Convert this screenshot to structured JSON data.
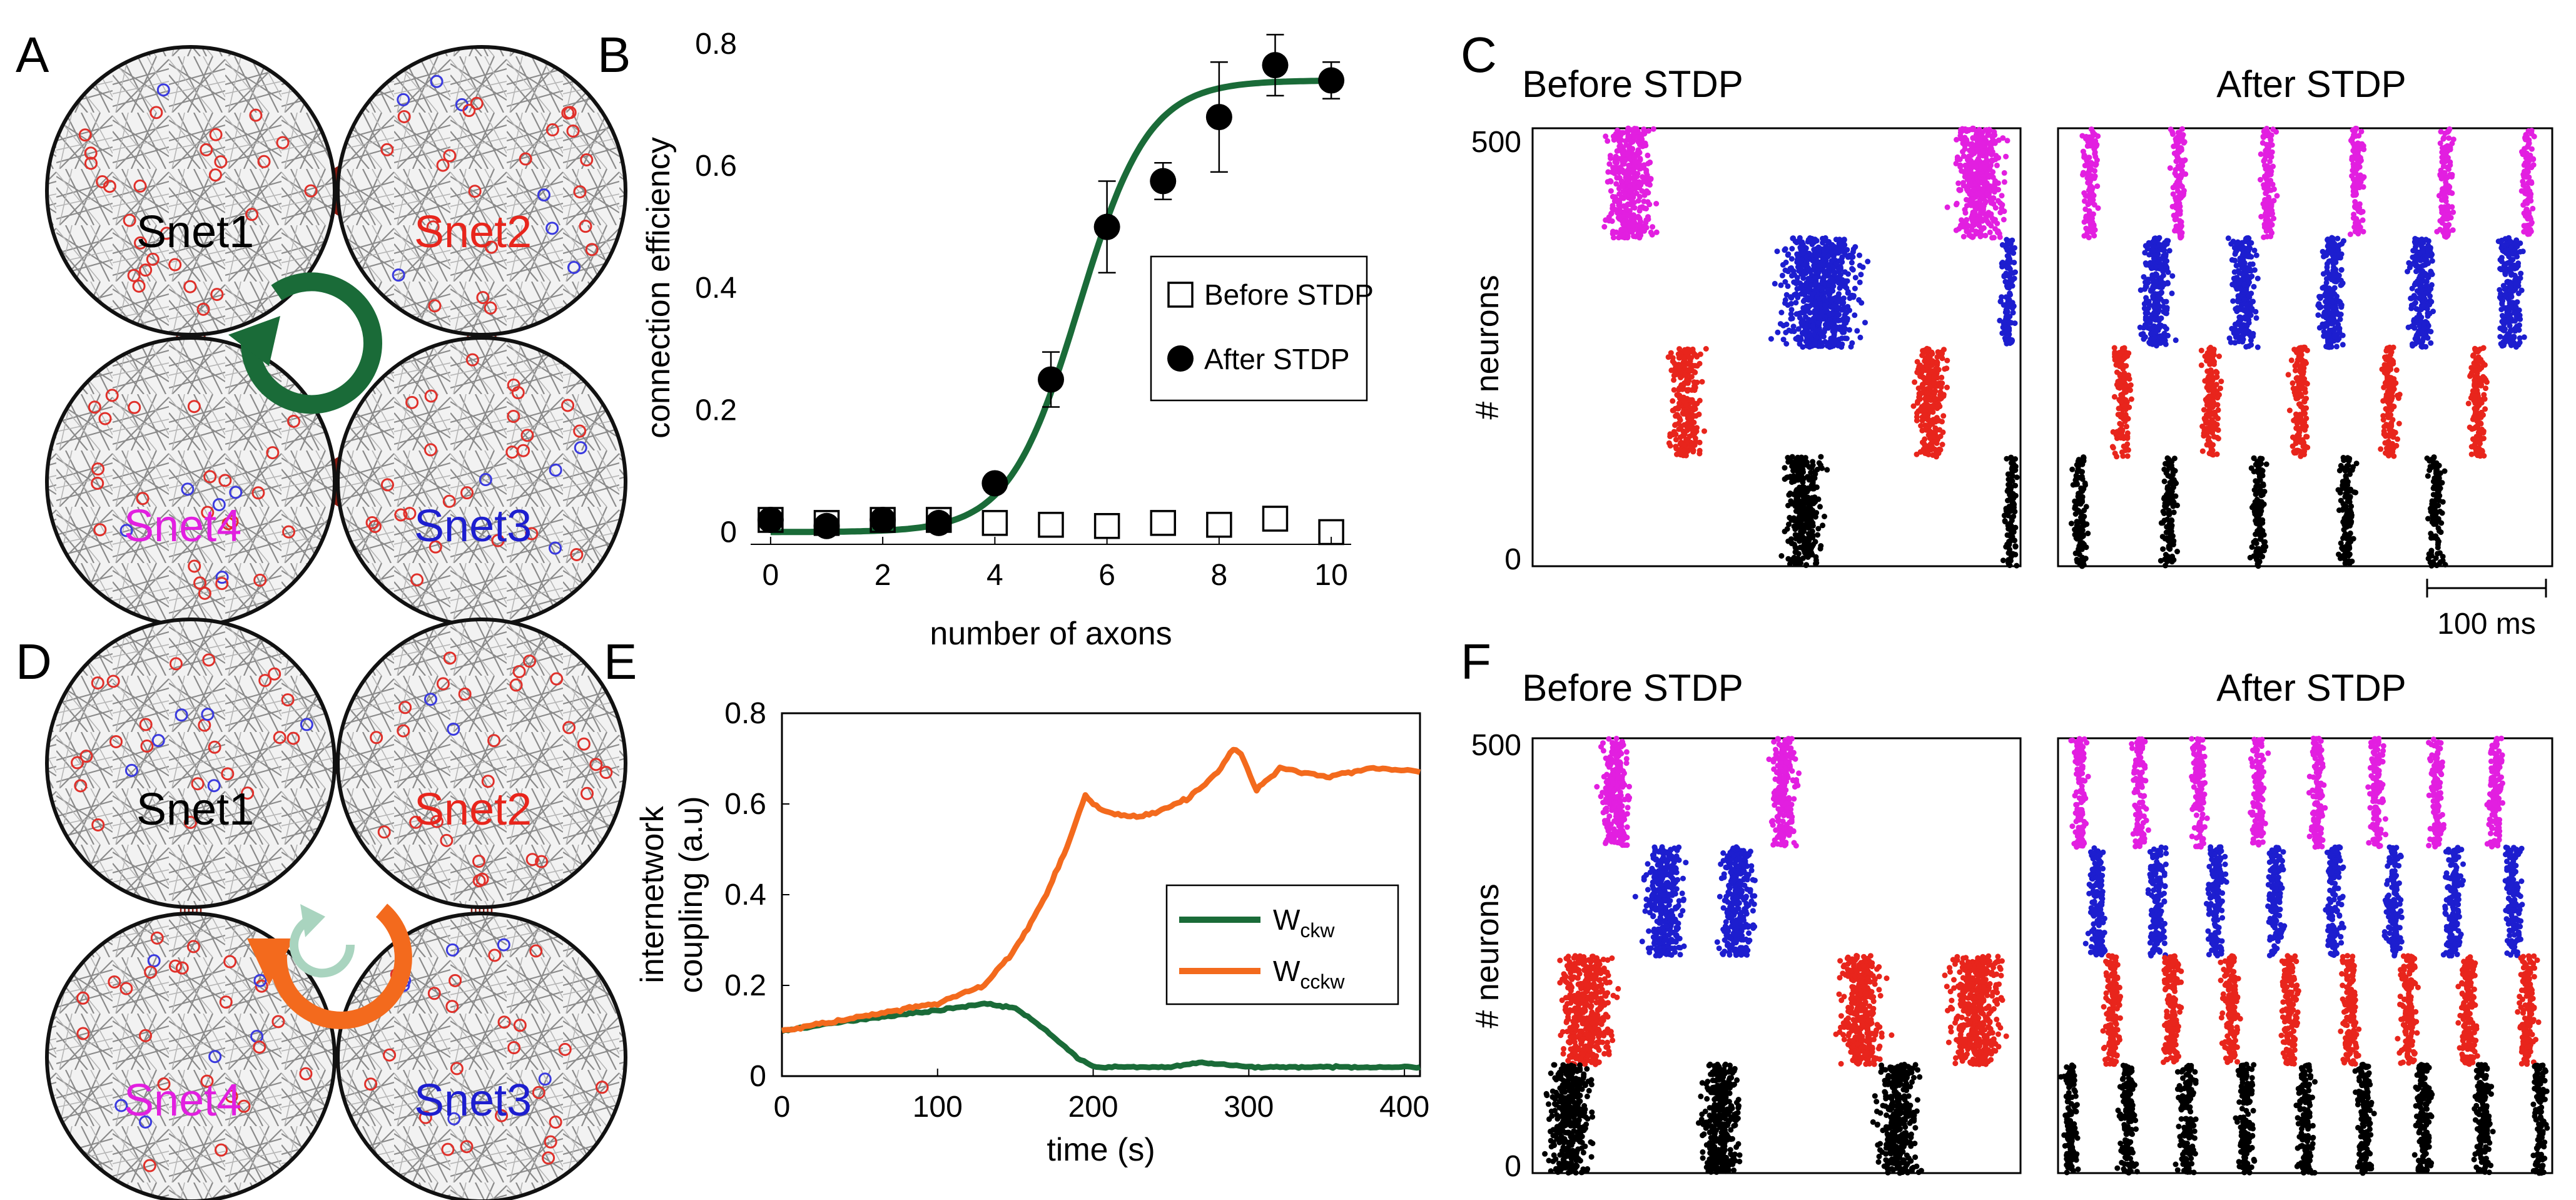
{
  "panel_labels": {
    "A": "A",
    "B": "B",
    "C": "C",
    "D": "D",
    "E": "E",
    "F": "F"
  },
  "colors": {
    "snet1": "#000000",
    "snet2": "#e8251c",
    "snet3": "#1d1ecf",
    "snet4": "#e21fe0",
    "fit_green": "#1a6b38",
    "orange": "#f36a1d",
    "synapse": "#8b1a10",
    "light_green": "#a9d4bf"
  },
  "diagram_A": {
    "nets": [
      "Snet1",
      "Snet2",
      "Snet3",
      "Snet4"
    ],
    "rotation": "counter-clockwise",
    "arrow_icon": "circular-arrow-icon"
  },
  "diagram_D": {
    "nets": [
      "Snet1",
      "Snet2",
      "Snet3",
      "Snet4"
    ],
    "outer_rotation": "clockwise",
    "inner_rotation": "counter-clockwise"
  },
  "chart_data": [
    {
      "panel": "B",
      "type": "scatter",
      "title": "",
      "xlabel": "number of axons",
      "ylabel": "connection efficiency",
      "xlim": [
        -0.3,
        10.3
      ],
      "ylim": [
        -0.02,
        0.8
      ],
      "xticks": [
        "0",
        "2",
        "4",
        "6",
        "8",
        "10"
      ],
      "yticks": [
        "0",
        "0.2",
        "0.4",
        "0.6",
        "0.8"
      ],
      "legend": [
        "Before STDP",
        "After STDP"
      ],
      "series": [
        {
          "name": "Before STDP",
          "marker": "open-square",
          "x": [
            0,
            1,
            2,
            3,
            4,
            5,
            6,
            7,
            8,
            9,
            10
          ],
          "y": [
            0.02,
            0.015,
            0.02,
            0.02,
            0.015,
            0.012,
            0.01,
            0.015,
            0.012,
            0.022,
            0.0
          ]
        },
        {
          "name": "After STDP",
          "marker": "filled-circle",
          "x": [
            0,
            1,
            2,
            3,
            4,
            5,
            6,
            7,
            8,
            9,
            10
          ],
          "y": [
            0.02,
            0.01,
            0.02,
            0.015,
            0.08,
            0.25,
            0.5,
            0.575,
            0.68,
            0.765,
            0.74
          ],
          "err": [
            0.01,
            0.01,
            0.01,
            0.01,
            0.015,
            0.045,
            0.075,
            0.03,
            0.09,
            0.05,
            0.03
          ]
        }
      ],
      "fit": {
        "name": "sigmoid fit",
        "bottom": 0.0,
        "top": 0.74,
        "midpoint": 5.5,
        "slope": 0.62
      }
    },
    {
      "panel": "C",
      "type": "scatter",
      "ylabel": "# neurons",
      "yticks": [
        "0",
        "500"
      ],
      "scale_bar": "100 ms",
      "subplots": [
        {
          "title": "Before STDP",
          "bursts": [
            {
              "group": 3,
              "x0": 0.12,
              "x1": 0.28
            },
            {
              "group": 3,
              "x0": 0.83,
              "x1": 1.0
            },
            {
              "group": 2,
              "x0": 0.45,
              "x1": 0.73
            },
            {
              "group": 2,
              "x0": 0.95,
              "x1": 1.0
            },
            {
              "group": 1,
              "x0": 0.26,
              "x1": 0.37
            },
            {
              "group": 1,
              "x0": 0.76,
              "x1": 0.87
            },
            {
              "group": 0,
              "x0": 0.49,
              "x1": 0.62
            },
            {
              "group": 0,
              "x0": 0.96,
              "x1": 1.0
            }
          ]
        },
        {
          "title": "After STDP",
          "bursts": [
            {
              "group": 3,
              "x0": 0.04,
              "x1": 0.09
            },
            {
              "group": 3,
              "x0": 0.22,
              "x1": 0.27
            },
            {
              "group": 3,
              "x0": 0.4,
              "x1": 0.45
            },
            {
              "group": 3,
              "x0": 0.58,
              "x1": 0.63
            },
            {
              "group": 3,
              "x0": 0.76,
              "x1": 0.81
            },
            {
              "group": 3,
              "x0": 0.93,
              "x1": 0.97
            },
            {
              "group": 2,
              "x0": 0.15,
              "x1": 0.25
            },
            {
              "group": 2,
              "x0": 0.33,
              "x1": 0.42
            },
            {
              "group": 2,
              "x0": 0.51,
              "x1": 0.6
            },
            {
              "group": 2,
              "x0": 0.69,
              "x1": 0.78
            },
            {
              "group": 2,
              "x0": 0.87,
              "x1": 0.96
            },
            {
              "group": 1,
              "x0": 0.1,
              "x1": 0.16
            },
            {
              "group": 1,
              "x0": 0.28,
              "x1": 0.34
            },
            {
              "group": 1,
              "x0": 0.46,
              "x1": 0.52
            },
            {
              "group": 1,
              "x0": 0.64,
              "x1": 0.7
            },
            {
              "group": 1,
              "x0": 0.82,
              "x1": 0.88
            },
            {
              "group": 0,
              "x0": 0.02,
              "x1": 0.07
            },
            {
              "group": 0,
              "x0": 0.2,
              "x1": 0.25
            },
            {
              "group": 0,
              "x0": 0.38,
              "x1": 0.43
            },
            {
              "group": 0,
              "x0": 0.56,
              "x1": 0.61
            },
            {
              "group": 0,
              "x0": 0.74,
              "x1": 0.79
            }
          ]
        }
      ]
    },
    {
      "panel": "E",
      "type": "line",
      "xlabel": "time (s)",
      "ylabel": "internetwork coupling (a.u)",
      "ylabel_lines": [
        "internetwork",
        "coupling (a.u)"
      ],
      "xlim": [
        0,
        410
      ],
      "ylim": [
        0,
        0.8
      ],
      "xticks": [
        "0",
        "100",
        "200",
        "300",
        "400"
      ],
      "yticks": [
        "0",
        "0.2",
        "0.4",
        "0.6",
        "0.8"
      ],
      "legend": [
        "W",
        "W"
      ],
      "legend_subscripts": [
        "ckw",
        "cckw"
      ],
      "series": [
        {
          "name": "Wckw",
          "x": [
            0,
            50,
            100,
            130,
            150,
            170,
            190,
            200,
            210,
            250,
            270,
            300,
            350,
            410
          ],
          "y": [
            0.1,
            0.125,
            0.145,
            0.16,
            0.15,
            0.1,
            0.04,
            0.02,
            0.02,
            0.02,
            0.03,
            0.02,
            0.02,
            0.02
          ]
        },
        {
          "name": "Wcckw",
          "x": [
            0,
            50,
            100,
            130,
            150,
            170,
            185,
            195,
            200,
            210,
            230,
            260,
            280,
            290,
            295,
            305,
            320,
            350,
            380,
            410
          ],
          "y": [
            0.1,
            0.13,
            0.16,
            0.2,
            0.28,
            0.4,
            0.52,
            0.62,
            0.6,
            0.58,
            0.57,
            0.61,
            0.67,
            0.72,
            0.71,
            0.63,
            0.68,
            0.66,
            0.68,
            0.67
          ]
        }
      ]
    },
    {
      "panel": "F",
      "type": "scatter",
      "ylabel": "# neurons",
      "yticks": [
        "0",
        "500"
      ],
      "subplots": [
        {
          "title": "Before STDP",
          "bursts": [
            {
              "group": 3,
              "x0": 0.12,
              "x1": 0.22
            },
            {
              "group": 3,
              "x0": 0.47,
              "x1": 0.56
            },
            {
              "group": 2,
              "x0": 0.2,
              "x1": 0.34
            },
            {
              "group": 2,
              "x0": 0.36,
              "x1": 0.48
            },
            {
              "group": 1,
              "x0": 0.02,
              "x1": 0.2
            },
            {
              "group": 1,
              "x0": 0.6,
              "x1": 0.75
            },
            {
              "group": 1,
              "x0": 0.82,
              "x1": 1.0
            },
            {
              "group": 0,
              "x0": 0.0,
              "x1": 0.15
            },
            {
              "group": 0,
              "x0": 0.32,
              "x1": 0.45
            },
            {
              "group": 0,
              "x0": 0.68,
              "x1": 0.82
            }
          ]
        },
        {
          "title": "After STDP",
          "bursts": [
            {
              "group": 3,
              "x0": 0.02,
              "x1": 0.07
            },
            {
              "group": 3,
              "x0": 0.14,
              "x1": 0.19
            },
            {
              "group": 3,
              "x0": 0.26,
              "x1": 0.31
            },
            {
              "group": 3,
              "x0": 0.38,
              "x1": 0.43
            },
            {
              "group": 3,
              "x0": 0.5,
              "x1": 0.55
            },
            {
              "group": 3,
              "x0": 0.62,
              "x1": 0.67
            },
            {
              "group": 3,
              "x0": 0.74,
              "x1": 0.79
            },
            {
              "group": 3,
              "x0": 0.86,
              "x1": 0.91
            },
            {
              "group": 2,
              "x0": 0.05,
              "x1": 0.11
            },
            {
              "group": 2,
              "x0": 0.17,
              "x1": 0.23
            },
            {
              "group": 2,
              "x0": 0.29,
              "x1": 0.35
            },
            {
              "group": 2,
              "x0": 0.41,
              "x1": 0.47
            },
            {
              "group": 2,
              "x0": 0.53,
              "x1": 0.59
            },
            {
              "group": 2,
              "x0": 0.65,
              "x1": 0.71
            },
            {
              "group": 2,
              "x0": 0.77,
              "x1": 0.83
            },
            {
              "group": 2,
              "x0": 0.89,
              "x1": 0.95
            },
            {
              "group": 1,
              "x0": 0.08,
              "x1": 0.14
            },
            {
              "group": 1,
              "x0": 0.2,
              "x1": 0.26
            },
            {
              "group": 1,
              "x0": 0.32,
              "x1": 0.38
            },
            {
              "group": 1,
              "x0": 0.44,
              "x1": 0.5
            },
            {
              "group": 1,
              "x0": 0.56,
              "x1": 0.62
            },
            {
              "group": 1,
              "x0": 0.68,
              "x1": 0.74
            },
            {
              "group": 1,
              "x0": 0.8,
              "x1": 0.86
            },
            {
              "group": 1,
              "x0": 0.92,
              "x1": 0.98
            },
            {
              "group": 0,
              "x0": 0.0,
              "x1": 0.05
            },
            {
              "group": 0,
              "x0": 0.11,
              "x1": 0.17
            },
            {
              "group": 0,
              "x0": 0.23,
              "x1": 0.29
            },
            {
              "group": 0,
              "x0": 0.35,
              "x1": 0.41
            },
            {
              "group": 0,
              "x0": 0.47,
              "x1": 0.53
            },
            {
              "group": 0,
              "x0": 0.59,
              "x1": 0.65
            },
            {
              "group": 0,
              "x0": 0.71,
              "x1": 0.77
            },
            {
              "group": 0,
              "x0": 0.83,
              "x1": 0.89
            },
            {
              "group": 0,
              "x0": 0.95,
              "x1": 1.0
            }
          ]
        }
      ]
    }
  ]
}
